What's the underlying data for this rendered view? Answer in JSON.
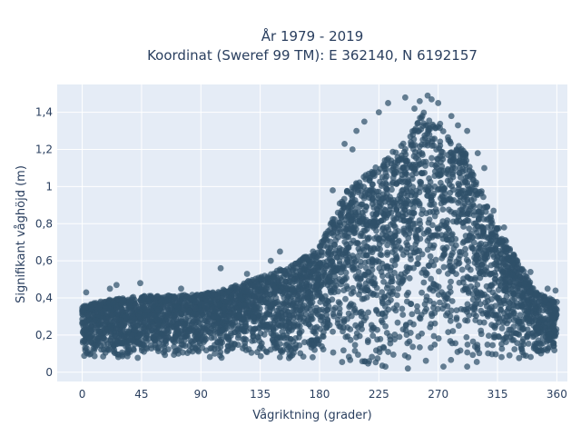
{
  "chart_data": {
    "type": "scatter",
    "title": [
      "År 1979 - 2019",
      "Koordinat (Sweref 99 TM): E 362140, N 6192157"
    ],
    "xlabel": "Vågriktning (grader)",
    "ylabel": "Signifikant våghöjd (m)",
    "xlim": [
      -19,
      368
    ],
    "ylim": [
      -0.05,
      1.55
    ],
    "xticks": [
      0,
      45,
      90,
      135,
      180,
      225,
      270,
      315,
      360
    ],
    "xtick_labels": [
      "0",
      "45",
      "90",
      "135",
      "180",
      "225",
      "270",
      "315",
      "360"
    ],
    "yticks": [
      0,
      0.2,
      0.4,
      0.6,
      0.8,
      1,
      1.2,
      1.4
    ],
    "ytick_labels": [
      "0",
      "0,2",
      "0,4",
      "0,6",
      "0,8",
      "1",
      "1,2",
      "1,4"
    ],
    "grid": true,
    "legend": false,
    "plot_background": "#e5ecf6",
    "marker_color": "#2f5069",
    "series": [
      {
        "x_range": [
          0,
          360
        ],
        "y_min": 0.02,
        "upper_envelope": {
          "x": [
            0,
            20,
            45,
            90,
            110,
            135,
            160,
            180,
            200,
            225,
            245,
            260,
            270,
            290,
            310,
            330,
            345,
            360
          ],
          "y": [
            0.36,
            0.39,
            0.41,
            0.42,
            0.45,
            0.52,
            0.58,
            0.68,
            0.98,
            1.12,
            1.25,
            1.42,
            1.35,
            1.2,
            0.85,
            0.6,
            0.43,
            0.38
          ]
        },
        "points": [
          {
            "x": 3,
            "y": 0.43
          },
          {
            "x": 21,
            "y": 0.45
          },
          {
            "x": 26,
            "y": 0.47
          },
          {
            "x": 44,
            "y": 0.48
          },
          {
            "x": 75,
            "y": 0.45
          },
          {
            "x": 105,
            "y": 0.56
          },
          {
            "x": 125,
            "y": 0.53
          },
          {
            "x": 143,
            "y": 0.6
          },
          {
            "x": 150,
            "y": 0.65
          },
          {
            "x": 170,
            "y": 0.62
          },
          {
            "x": 190,
            "y": 0.98
          },
          {
            "x": 199,
            "y": 1.23
          },
          {
            "x": 205,
            "y": 1.2
          },
          {
            "x": 208,
            "y": 1.3
          },
          {
            "x": 214,
            "y": 1.35
          },
          {
            "x": 225,
            "y": 1.4
          },
          {
            "x": 232,
            "y": 1.45
          },
          {
            "x": 245,
            "y": 1.48
          },
          {
            "x": 252,
            "y": 1.42
          },
          {
            "x": 256,
            "y": 1.46
          },
          {
            "x": 262,
            "y": 1.49
          },
          {
            "x": 265,
            "y": 1.47
          },
          {
            "x": 270,
            "y": 1.45
          },
          {
            "x": 280,
            "y": 1.38
          },
          {
            "x": 285,
            "y": 1.33
          },
          {
            "x": 292,
            "y": 1.3
          },
          {
            "x": 300,
            "y": 1.18
          },
          {
            "x": 305,
            "y": 1.1
          },
          {
            "x": 312,
            "y": 0.87
          },
          {
            "x": 320,
            "y": 0.78
          },
          {
            "x": 330,
            "y": 0.6
          },
          {
            "x": 340,
            "y": 0.54
          },
          {
            "x": 353,
            "y": 0.45
          },
          {
            "x": 359,
            "y": 0.44
          },
          {
            "x": 230,
            "y": 0.03
          },
          {
            "x": 247,
            "y": 0.02
          },
          {
            "x": 274,
            "y": 0.03
          },
          {
            "x": 292,
            "y": 0.03
          }
        ]
      }
    ]
  }
}
